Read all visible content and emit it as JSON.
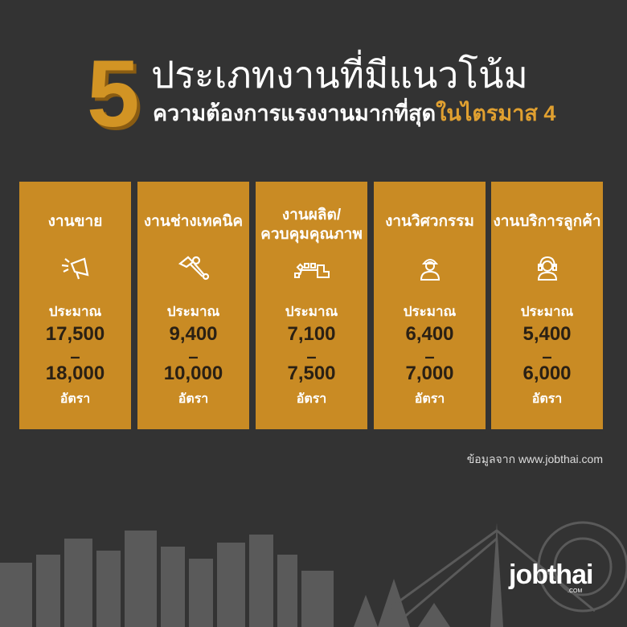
{
  "header": {
    "number": "5",
    "title_line1": "ประเภทงานที่มีแนวโน้ม",
    "title_line2_main": "ความต้องการแรงงานมากที่สุด",
    "title_line2_highlight": "ในไตรมาส 4"
  },
  "colors": {
    "background": "#333333",
    "card": "#c98b24",
    "accent": "#d29424"
  },
  "cards": [
    {
      "title": "งานขาย",
      "icon": "megaphone-icon",
      "approx": "ประมาณ",
      "min": "17,500",
      "dash": "–",
      "max": "18,000",
      "unit": "อัตรา"
    },
    {
      "title": "งานช่างเทคนิค",
      "icon": "tools-icon",
      "approx": "ประมาณ",
      "min": "9,400",
      "dash": "–",
      "max": "10,000",
      "unit": "อัตรา"
    },
    {
      "title": "งานผลิต/\nควบคุมคุณภาพ",
      "title_a": "งานผลิต/",
      "title_b": "ควบคุมคุณภาพ",
      "icon": "conveyor-icon",
      "approx": "ประมาณ",
      "min": "7,100",
      "dash": "–",
      "max": "7,500",
      "unit": "อัตรา"
    },
    {
      "title": "งานวิศวกรรม",
      "icon": "engineer-icon",
      "approx": "ประมาณ",
      "min": "6,400",
      "dash": "–",
      "max": "7,000",
      "unit": "อัตรา"
    },
    {
      "title": "งานบริการลูกค้า",
      "icon": "headset-icon",
      "approx": "ประมาณ",
      "min": "5,400",
      "dash": "–",
      "max": "6,000",
      "unit": "อัตรา"
    }
  ],
  "source": "ข้อมูลจาก www.jobthai.com",
  "logo": {
    "text": "jobthai",
    "sub": ".COM"
  }
}
